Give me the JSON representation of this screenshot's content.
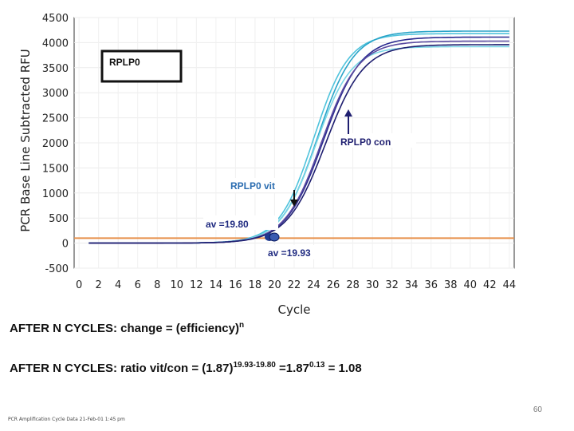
{
  "chart_data": {
    "type": "line",
    "title": "",
    "ylabel": "PCR Base Line Subtracted RFU",
    "xlabel": "Cycle",
    "xlim": [
      -0.5,
      44.5
    ],
    "ylim": [
      -500,
      4500
    ],
    "xticks": [
      "0",
      "2",
      "4",
      "6",
      "8",
      "10",
      "12",
      "14",
      "16",
      "18",
      "20",
      "22",
      "24",
      "26",
      "28",
      "30",
      "32",
      "34",
      "36",
      "38",
      "40",
      "42",
      "44"
    ],
    "yticks": [
      "4500",
      "4000",
      "3500",
      "3000",
      "2500",
      "2000",
      "1500",
      "1000",
      "500",
      "0",
      "-500"
    ],
    "threshold": 100,
    "series": [
      {
        "name": "RPLP0 vit 1",
        "color": "#4fc3dc",
        "midpoint": 24.0,
        "plateau": 4180,
        "slope": 0.56
      },
      {
        "name": "RPLP0 vit 2",
        "color": "#2aa4c8",
        "midpoint": 24.4,
        "plateau": 4230,
        "slope": 0.54
      },
      {
        "name": "RPLP0 vit 3",
        "color": "#7ad6e6",
        "midpoint": 24.2,
        "plateau": 3920,
        "slope": 0.55
      },
      {
        "name": "RPLP0 con 1",
        "color": "#2b2b90",
        "midpoint": 25.0,
        "plateau": 4110,
        "slope": 0.52
      },
      {
        "name": "RPLP0 con 2",
        "color": "#5a4aa0",
        "midpoint": 24.8,
        "plateau": 4030,
        "slope": 0.53
      },
      {
        "name": "RPLP0 con 3",
        "color": "#1f1f70",
        "midpoint": 25.2,
        "plateau": 3960,
        "slope": 0.51
      }
    ],
    "threshold_color": "#e8904a",
    "annotations": {
      "box_label": "RPLP0",
      "con_label": "RPLP0 con",
      "vit_label": "RPLP0 vit",
      "av_vit": "av =19.80",
      "av_con": "av =19.93"
    }
  },
  "formula1": {
    "text": "AFTER N CYCLES: change = (efficiency)",
    "sup": "n"
  },
  "formula2": {
    "text": "AFTER N CYCLES: ratio vit/con = (1.87)",
    "sup1": "19.93-19.80",
    "mid": " =1.87",
    "sup2": "0.13",
    "tail": " = 1.08"
  },
  "page_number": "60",
  "footer_note": "PCR Amplification Cycle Data 21-Feb-01 1:45 pm"
}
